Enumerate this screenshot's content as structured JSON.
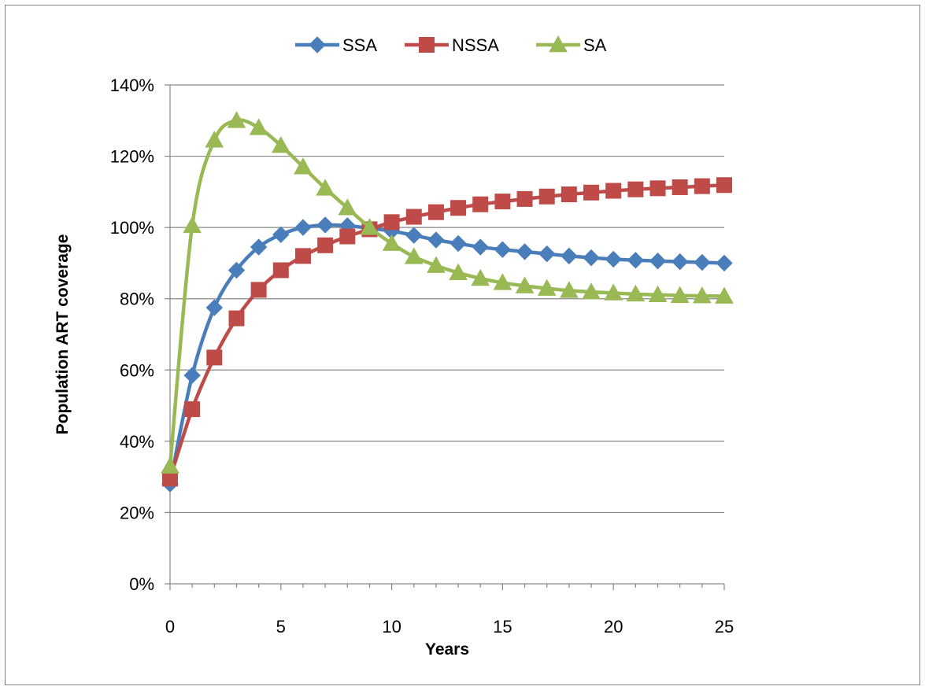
{
  "chart_data": {
    "type": "line",
    "xlabel": "Years",
    "ylabel": "Population ART coverage",
    "xlim": [
      0,
      25
    ],
    "ylim": [
      0,
      1.4
    ],
    "x_ticks": [
      "0",
      "5",
      "10",
      "15",
      "20",
      "25"
    ],
    "y_ticks": [
      "0%",
      "20%",
      "40%",
      "60%",
      "80%",
      "100%",
      "120%",
      "140%"
    ],
    "grid": "horizontal",
    "legend_position": "top",
    "x": [
      0,
      1,
      2,
      3,
      4,
      5,
      6,
      7,
      8,
      9,
      10,
      11,
      12,
      13,
      14,
      15,
      16,
      17,
      18,
      19,
      20,
      21,
      22,
      23,
      24,
      25
    ],
    "series": [
      {
        "name": "SSA",
        "color": "#4a7ebb",
        "marker": "diamond",
        "values": [
          0.28,
          0.585,
          0.775,
          0.88,
          0.945,
          0.98,
          1.0,
          1.007,
          1.005,
          0.998,
          0.99,
          0.978,
          0.965,
          0.955,
          0.945,
          0.938,
          0.932,
          0.926,
          0.92,
          0.915,
          0.911,
          0.908,
          0.906,
          0.904,
          0.902,
          0.9
        ]
      },
      {
        "name": "NSSA",
        "color": "#be4b48",
        "marker": "square",
        "values": [
          0.295,
          0.49,
          0.635,
          0.745,
          0.825,
          0.88,
          0.92,
          0.95,
          0.975,
          0.995,
          1.015,
          1.03,
          1.043,
          1.055,
          1.065,
          1.073,
          1.08,
          1.087,
          1.093,
          1.098,
          1.103,
          1.107,
          1.11,
          1.113,
          1.116,
          1.119
        ]
      },
      {
        "name": "SA",
        "color": "#98b954",
        "marker": "triangle",
        "values": [
          0.33,
          1.005,
          1.245,
          1.3,
          1.28,
          1.23,
          1.17,
          1.11,
          1.055,
          1.0,
          0.955,
          0.918,
          0.893,
          0.873,
          0.857,
          0.845,
          0.836,
          0.829,
          0.823,
          0.819,
          0.816,
          0.813,
          0.811,
          0.809,
          0.808,
          0.807
        ]
      }
    ]
  }
}
